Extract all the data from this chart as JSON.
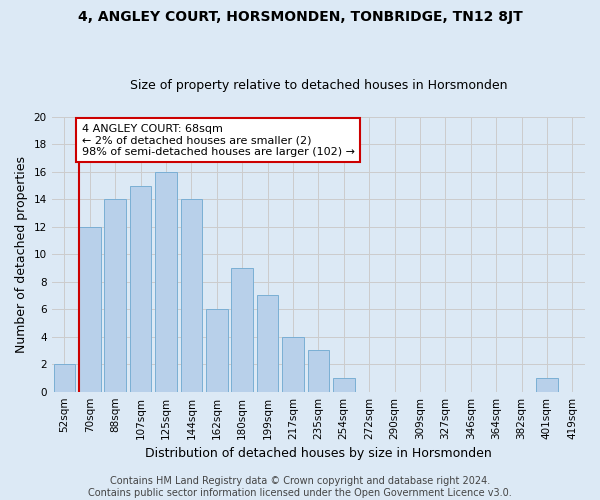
{
  "title": "4, ANGLEY COURT, HORSMONDEN, TONBRIDGE, TN12 8JT",
  "subtitle": "Size of property relative to detached houses in Horsmonden",
  "xlabel": "Distribution of detached houses by size in Horsmonden",
  "ylabel": "Number of detached properties",
  "categories": [
    "52sqm",
    "70sqm",
    "88sqm",
    "107sqm",
    "125sqm",
    "144sqm",
    "162sqm",
    "180sqm",
    "199sqm",
    "217sqm",
    "235sqm",
    "254sqm",
    "272sqm",
    "290sqm",
    "309sqm",
    "327sqm",
    "346sqm",
    "364sqm",
    "382sqm",
    "401sqm",
    "419sqm"
  ],
  "values": [
    2,
    12,
    14,
    15,
    16,
    14,
    6,
    9,
    7,
    4,
    3,
    1,
    0,
    0,
    0,
    0,
    0,
    0,
    0,
    1,
    0
  ],
  "bar_color": "#b8d0ea",
  "bar_edge_color": "#7aafd4",
  "annotation_line1": "4 ANGLEY COURT: 68sqm",
  "annotation_line2": "← 2% of detached houses are smaller (2)",
  "annotation_line3": "98% of semi-detached houses are larger (102) →",
  "annotation_box_color": "#ffffff",
  "annotation_box_edge_color": "#cc0000",
  "vline_color": "#cc0000",
  "vline_x": 0.575,
  "ylim": [
    0,
    20
  ],
  "yticks": [
    0,
    2,
    4,
    6,
    8,
    10,
    12,
    14,
    16,
    18,
    20
  ],
  "grid_color": "#cccccc",
  "bg_color": "#dce9f5",
  "title_fontsize": 10,
  "subtitle_fontsize": 9,
  "xlabel_fontsize": 9,
  "ylabel_fontsize": 9,
  "tick_fontsize": 7.5,
  "ann_fontsize": 8,
  "footer_text": "Contains HM Land Registry data © Crown copyright and database right 2024.\nContains public sector information licensed under the Open Government Licence v3.0.",
  "footer_fontsize": 7
}
